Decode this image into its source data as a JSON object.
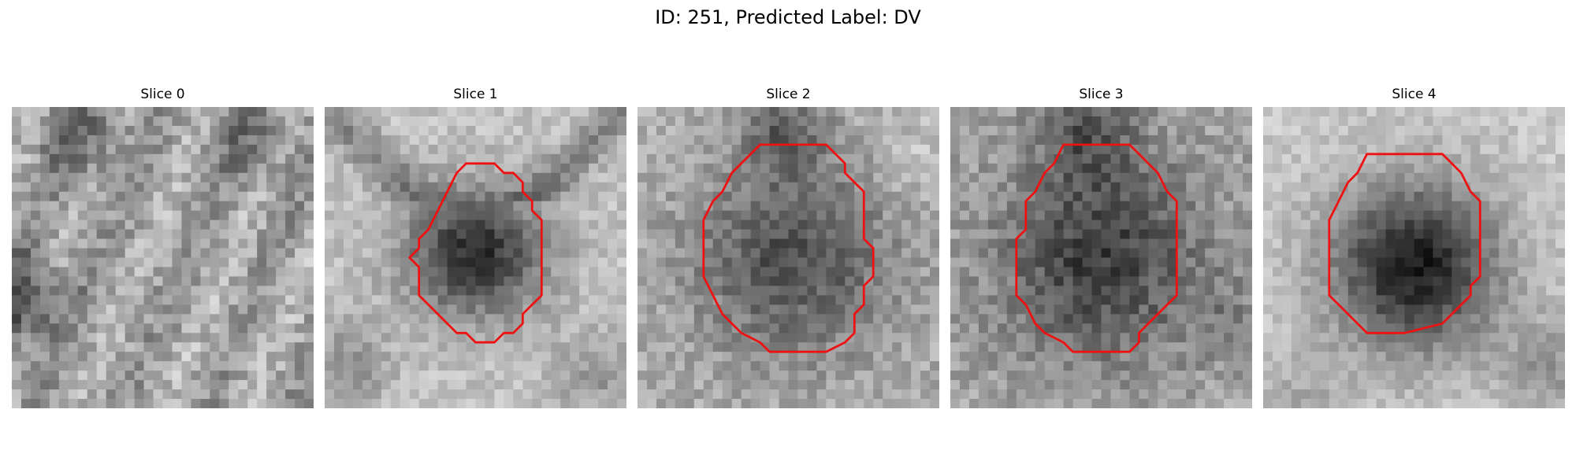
{
  "figure": {
    "title": "ID: 251, Predicted Label: DV",
    "contour_color": "#ee1111",
    "colormap": "gray"
  },
  "slices": [
    {
      "label": "Slice 0",
      "has_contour": false,
      "center_tone": "mottled gray, no dark region",
      "dark_left_edge": true
    },
    {
      "label": "Slice 1",
      "has_contour": true,
      "center_tone": "dark core inside bright ring"
    },
    {
      "label": "Slice 2",
      "has_contour": true,
      "center_tone": "medium-dark mottled core"
    },
    {
      "label": "Slice 3",
      "has_contour": true,
      "center_tone": "dark mottled core"
    },
    {
      "label": "Slice 4",
      "has_contour": true,
      "center_tone": "dark circular core, bright surround"
    }
  ]
}
